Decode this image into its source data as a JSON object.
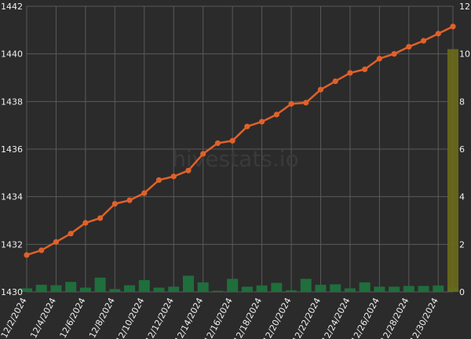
{
  "watermark": "hivestats.io",
  "colors": {
    "background": "#2b2b2b",
    "grid": "#5a5a5a",
    "line": "#e0612a",
    "bar": "#1f6e3c",
    "highlight_bar": "#6b6a1a",
    "text": "#f0f0f0"
  },
  "chart_data": {
    "type": "line+bar",
    "title": "",
    "grid": true,
    "x": [
      "12/2/2024",
      "12/3/2024",
      "12/4/2024",
      "12/5/2024",
      "12/6/2024",
      "12/7/2024",
      "12/8/2024",
      "12/9/2024",
      "12/10/2024",
      "12/11/2024",
      "12/12/2024",
      "12/13/2024",
      "12/14/2024",
      "12/15/2024",
      "12/16/2024",
      "12/17/2024",
      "12/18/2024",
      "12/19/2024",
      "12/20/2024",
      "12/21/2024",
      "12/22/2024",
      "12/23/2024",
      "12/24/2024",
      "12/25/2024",
      "12/26/2024",
      "12/27/2024",
      "12/28/2024",
      "12/29/2024",
      "12/30/2024",
      "12/31/2024"
    ],
    "x_tick_labels": [
      "12/2/2024",
      "12/4/2024",
      "12/6/2024",
      "12/8/2024",
      "12/10/2024",
      "12/12/2024",
      "12/14/2024",
      "12/16/2024",
      "12/18/2024",
      "12/20/2024",
      "12/22/2024",
      "12/24/2024",
      "12/26/2024",
      "12/28/2024",
      "12/30/2024"
    ],
    "left_axis": {
      "ylim": [
        1430,
        1442
      ],
      "ticks": [
        1430,
        1432,
        1434,
        1436,
        1438,
        1440,
        1442
      ]
    },
    "right_axis": {
      "ylim": [
        0,
        12
      ],
      "ticks": [
        0,
        2,
        4,
        6,
        8,
        10,
        12
      ]
    },
    "series": [
      {
        "kind": "line",
        "axis": "left",
        "values": [
          1431.55,
          1431.75,
          1432.1,
          1432.45,
          1432.9,
          1433.1,
          1433.7,
          1433.85,
          1434.15,
          1434.7,
          1434.85,
          1435.1,
          1435.8,
          1436.25,
          1436.35,
          1436.95,
          1437.15,
          1437.45,
          1437.9,
          1437.95,
          1438.5,
          1438.85,
          1439.2,
          1439.35,
          1439.8,
          1440.0,
          1440.3,
          1440.55,
          1440.85,
          1441.15
        ]
      },
      {
        "kind": "bar",
        "axis": "right",
        "values": [
          0.15,
          0.3,
          0.28,
          0.42,
          0.18,
          0.6,
          0.12,
          0.28,
          0.5,
          0.18,
          0.22,
          0.68,
          0.4,
          0.05,
          0.55,
          0.22,
          0.27,
          0.38,
          0.07,
          0.55,
          0.3,
          0.32,
          0.15,
          0.4,
          0.22,
          0.22,
          0.25,
          0.25,
          0.27,
          0.18
        ]
      },
      {
        "kind": "bar-highlight",
        "axis": "right",
        "values": [
          0,
          0,
          0,
          0,
          0,
          0,
          0,
          0,
          0,
          0,
          0,
          0,
          0,
          0,
          0,
          0,
          0,
          0,
          0,
          0,
          0,
          0,
          0,
          0,
          0,
          0,
          0,
          0,
          0,
          10.2
        ]
      }
    ]
  }
}
